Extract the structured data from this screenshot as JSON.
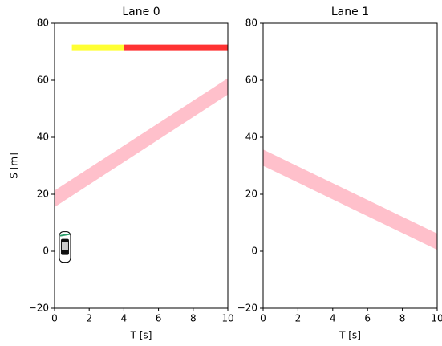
{
  "chart_data": [
    {
      "type": "area",
      "title": "Lane 0",
      "xlabel": "T [s]",
      "ylabel": "S [m]",
      "xlim": [
        0,
        10
      ],
      "ylim": [
        -20,
        80
      ],
      "xticks": [
        0,
        2,
        4,
        6,
        8,
        10
      ],
      "yticks": [
        {
          "value": -20,
          "label": "−20"
        },
        0,
        20,
        40,
        60,
        80
      ],
      "bands": [
        {
          "x": [
            0,
            10
          ],
          "lower": [
            15.5,
            55
          ],
          "upper": [
            21.3,
            60.7
          ],
          "color": "#ffc0cb"
        }
      ],
      "segments": [
        {
          "x": [
            1,
            4
          ],
          "y": 71.5,
          "color": "#ffff33"
        },
        {
          "x": [
            4,
            10
          ],
          "y": 71.5,
          "color": "#ff3333"
        }
      ],
      "ego": {
        "x": 0.6,
        "y": 1.5
      }
    },
    {
      "type": "area",
      "title": "Lane 1",
      "xlabel": "T [s]",
      "xlim": [
        0,
        10
      ],
      "ylim": [
        -20,
        80
      ],
      "xticks": [
        0,
        2,
        4,
        6,
        8,
        10
      ],
      "yticks": [
        {
          "value": -20,
          "label": "−20"
        },
        0,
        20,
        40,
        60,
        80
      ],
      "bands": [
        {
          "x": [
            0,
            10
          ],
          "lower": [
            30,
            0.5
          ],
          "upper": [
            35.7,
            6.2
          ],
          "color": "#ffc0cb"
        }
      ]
    }
  ]
}
